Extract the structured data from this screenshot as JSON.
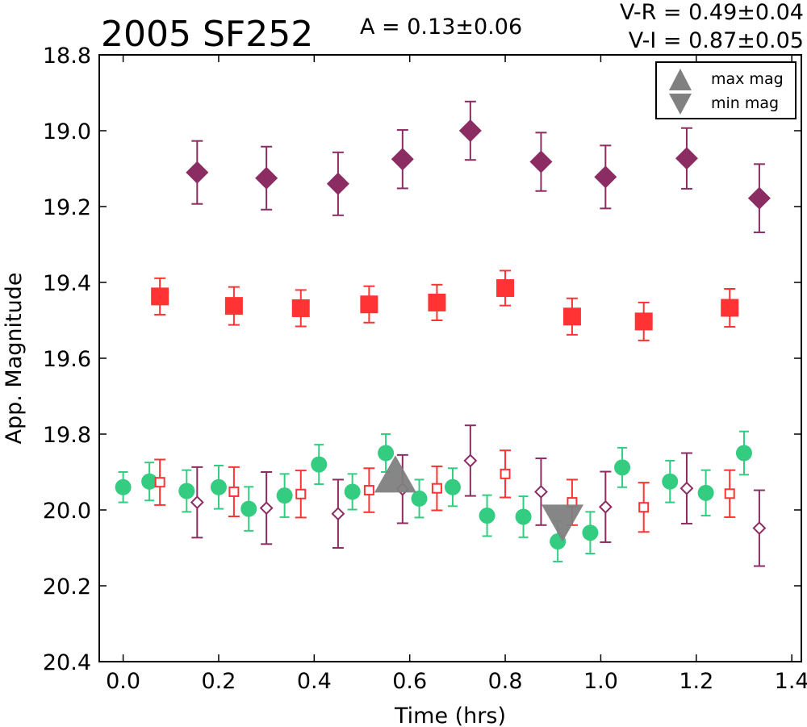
{
  "chart_data": {
    "type": "scatter",
    "title": "2005 SF252",
    "amplitude_text": "A  = 0.13±0.06",
    "color_index": [
      "V-R = 0.49±0.04",
      "V-I  = 0.87±0.05"
    ],
    "xlabel": "Time (hrs)",
    "ylabel": "App. Magnitude",
    "xlim": [
      -0.05,
      1.42
    ],
    "ylim": [
      18.8,
      20.4
    ],
    "y_inverted": true,
    "x_ticks": [
      0.0,
      0.2,
      0.4,
      0.6,
      0.8,
      1.0,
      1.2,
      1.4
    ],
    "x_tick_labels": [
      "0.0",
      "0.2",
      "0.4",
      "0.6",
      "0.8",
      "1.0",
      "1.2",
      "1.4"
    ],
    "y_ticks": [
      18.8,
      19.0,
      19.2,
      19.4,
      19.6,
      19.8,
      20.0,
      20.2,
      20.4
    ],
    "y_tick_labels": [
      "18.8",
      "19.0",
      "19.2",
      "19.4",
      "19.6",
      "19.8",
      "20.0",
      "20.2",
      "20.4"
    ],
    "legend": {
      "position": "top-right",
      "entries": [
        {
          "label": "max mag",
          "marker": "triangle-up",
          "color": "#808080"
        },
        {
          "label": "min mag",
          "marker": "triangle-down",
          "color": "#808080"
        }
      ]
    },
    "series": [
      {
        "marker": "diamond-filled",
        "color": "#8b2c63",
        "x": [
          0.155,
          0.3,
          0.45,
          0.585,
          0.727,
          0.875,
          1.01,
          1.18,
          1.332
        ],
        "y": [
          19.11,
          19.125,
          19.14,
          19.075,
          19.0,
          19.082,
          19.122,
          19.073,
          19.178
        ],
        "err": [
          0.083,
          0.083,
          0.083,
          0.077,
          0.077,
          0.077,
          0.083,
          0.08,
          0.09
        ]
      },
      {
        "marker": "square-filled",
        "color": "#ff3333",
        "x": [
          0.077,
          0.232,
          0.372,
          0.515,
          0.657,
          0.8,
          0.94,
          1.09,
          1.27
        ],
        "y": [
          19.437,
          19.462,
          19.468,
          19.458,
          19.453,
          19.415,
          19.49,
          19.503,
          19.467
        ],
        "err": [
          0.048,
          0.05,
          0.048,
          0.048,
          0.047,
          0.046,
          0.048,
          0.05,
          0.05
        ]
      },
      {
        "marker": "circle-filled",
        "color": "#33cc80",
        "x": [
          0.0,
          0.055,
          0.133,
          0.2,
          0.263,
          0.338,
          0.41,
          0.48,
          0.55,
          0.62,
          0.69,
          0.762,
          0.838,
          0.91,
          0.978,
          1.045,
          1.145,
          1.22,
          1.3
        ],
        "y": [
          19.94,
          19.925,
          19.95,
          19.94,
          19.997,
          19.962,
          19.88,
          19.952,
          19.85,
          19.97,
          19.94,
          20.015,
          20.018,
          20.083,
          20.06,
          19.888,
          19.925,
          19.955,
          19.85
        ],
        "err": [
          0.04,
          0.05,
          0.055,
          0.057,
          0.058,
          0.057,
          0.052,
          0.047,
          0.05,
          0.05,
          0.05,
          0.054,
          0.054,
          0.053,
          0.055,
          0.052,
          0.055,
          0.06,
          0.057
        ]
      },
      {
        "marker": "square-open",
        "color": "#ff3333",
        "x": [
          0.077,
          0.232,
          0.372,
          0.515,
          0.657,
          0.8,
          0.94,
          1.09,
          1.27
        ],
        "y": [
          19.927,
          19.952,
          19.958,
          19.948,
          19.943,
          19.905,
          19.98,
          19.993,
          19.957
        ],
        "err": [
          0.06,
          0.065,
          0.062,
          0.058,
          0.058,
          0.062,
          0.06,
          0.065,
          0.062
        ]
      },
      {
        "marker": "diamond-open",
        "color": "#8b2c63",
        "x": [
          0.155,
          0.3,
          0.45,
          0.585,
          0.727,
          0.875,
          1.01,
          1.18,
          1.332
        ],
        "y": [
          19.98,
          19.995,
          20.01,
          19.945,
          19.87,
          19.952,
          19.992,
          19.943,
          20.048
        ],
        "err": [
          0.093,
          0.095,
          0.09,
          0.09,
          0.093,
          0.088,
          0.093,
          0.093,
          0.1
        ]
      }
    ],
    "max_mag_marker": {
      "x": 0.57,
      "y": 19.92,
      "color": "#808080"
    },
    "min_mag_marker": {
      "x": 0.92,
      "y": 20.02,
      "color": "#808080"
    }
  }
}
